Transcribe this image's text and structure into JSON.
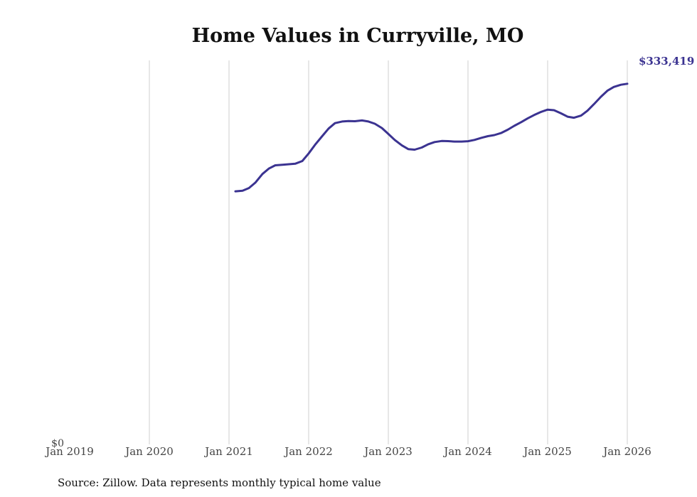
{
  "chart_data": {
    "type": "line",
    "title": "Home Values in Curryville, MO",
    "xlabel": "",
    "ylabel": "",
    "x_ticks": [
      "Jan 2019",
      "Jan 2020",
      "Jan 2021",
      "Jan 2022",
      "Jan 2023",
      "Jan 2024",
      "Jan 2025",
      "Jan 2026"
    ],
    "x_range": [
      2019.0,
      2026.0
    ],
    "ylim": [
      0,
      355000
    ],
    "y_tick_label": "$0",
    "grid": "vertical",
    "line_color": "#3b3391",
    "series": [
      {
        "name": "Typical home value",
        "x": [
          2021.08,
          2021.17,
          2021.25,
          2021.33,
          2021.42,
          2021.5,
          2021.58,
          2021.67,
          2021.75,
          2021.83,
          2021.92,
          2022.0,
          2022.08,
          2022.17,
          2022.25,
          2022.33,
          2022.42,
          2022.5,
          2022.58,
          2022.67,
          2022.75,
          2022.83,
          2022.92,
          2023.0,
          2023.08,
          2023.17,
          2023.25,
          2023.33,
          2023.42,
          2023.5,
          2023.58,
          2023.67,
          2023.75,
          2023.83,
          2023.92,
          2024.0,
          2024.08,
          2024.17,
          2024.25,
          2024.33,
          2024.42,
          2024.5,
          2024.58,
          2024.67,
          2024.75,
          2024.83,
          2024.92,
          2025.0,
          2025.08,
          2025.17,
          2025.25,
          2025.33,
          2025.42,
          2025.5,
          2025.58,
          2025.67,
          2025.75,
          2025.83,
          2025.92,
          2026.0
        ],
        "values": [
          234000,
          234500,
          237000,
          242000,
          250000,
          255000,
          258000,
          258500,
          259000,
          259500,
          262000,
          269000,
          277000,
          285000,
          292000,
          297000,
          298500,
          299000,
          298800,
          299500,
          298500,
          296500,
          292500,
          287000,
          281500,
          276500,
          273000,
          272500,
          274500,
          277500,
          279500,
          280500,
          280400,
          280000,
          280000,
          280300,
          281500,
          283500,
          285000,
          286000,
          288000,
          291000,
          294500,
          298000,
          301500,
          304500,
          307500,
          309500,
          309000,
          306000,
          303000,
          302000,
          304000,
          308500,
          314500,
          321500,
          327000,
          330500,
          332500,
          333419
        ]
      }
    ],
    "end_label": "$333,419",
    "source": "Source: Zillow. Data represents monthly typical home value"
  }
}
